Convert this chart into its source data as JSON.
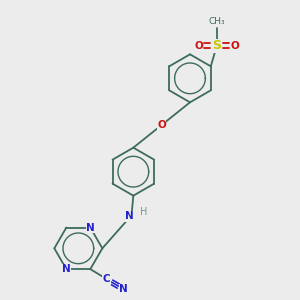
{
  "bg": "#ececec",
  "bc": "#3d6b5e",
  "nc": "#2222cc",
  "oc": "#cc1111",
  "sc": "#c8c800",
  "hc": "#6a9e8e",
  "lw": 1.3,
  "lw_inner": 1.0,
  "fs": 7.5,
  "fs_small": 6.5,
  "r_ring": 0.72,
  "inner_ratio": 0.64,
  "figsize": [
    3.0,
    3.0
  ],
  "dpi": 100,
  "xlim": [
    0.5,
    9.5
  ],
  "ylim": [
    0.5,
    9.5
  ]
}
